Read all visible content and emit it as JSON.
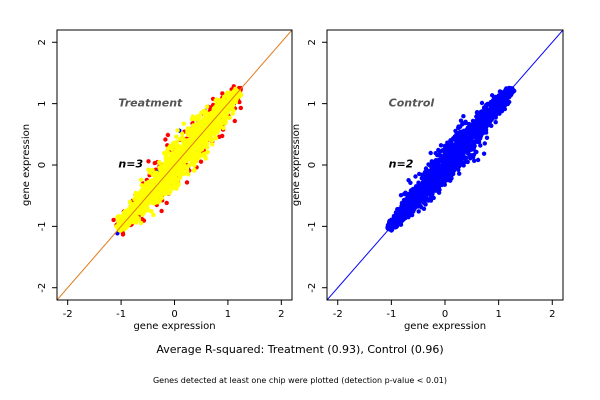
{
  "chart_data": [
    {
      "type": "scatter",
      "panel": "Treatment",
      "annotation": "Treatment",
      "annotation_n": "n=3",
      "xlabel": "gene expression",
      "ylabel": "gene expression",
      "xlim": [
        -2.2,
        2.2
      ],
      "ylim": [
        -2.2,
        2.2
      ],
      "xticks": [
        -2,
        -1,
        0,
        1,
        2
      ],
      "yticks": [
        -2,
        -1,
        0,
        1,
        2
      ],
      "grid": false,
      "reference_line": {
        "slope": 1,
        "intercept": 0,
        "color": "#e0791a"
      },
      "series": [
        {
          "color": "#ff0000",
          "center": [
            0,
            0
          ],
          "extent": [
            -1.05,
            1.25
          ],
          "spread": 0.17,
          "count": 300
        },
        {
          "color": "#0000ff",
          "center": [
            0,
            0
          ],
          "extent": [
            -1.1,
            1.2
          ],
          "spread": 0.12,
          "count": 60
        },
        {
          "color": "#ffff00",
          "center": [
            0,
            0
          ],
          "extent": [
            -1.05,
            1.2
          ],
          "spread": 0.13,
          "count": 1600
        }
      ]
    },
    {
      "type": "scatter",
      "panel": "Control",
      "annotation": "Control",
      "annotation_n": "n=2",
      "xlabel": "gene expression",
      "ylabel": "gene expression",
      "xlim": [
        -2.2,
        2.2
      ],
      "ylim": [
        -2.2,
        2.2
      ],
      "xticks": [
        -2,
        -1,
        0,
        1,
        2
      ],
      "yticks": [
        -2,
        -1,
        0,
        1,
        2
      ],
      "grid": false,
      "reference_line": {
        "slope": 1,
        "intercept": 0,
        "color": "#0000ff"
      },
      "series": [
        {
          "color": "#0000ff",
          "center": [
            0,
            0
          ],
          "extent": [
            -1.05,
            1.25
          ],
          "spread": 0.11,
          "count": 1800
        }
      ]
    }
  ],
  "captions": {
    "main": "Average R-squared: Treatment (0.93), Control (0.96)",
    "sub": "Genes detected at least one chip were plotted (detection p-value < 0.01)"
  },
  "colors": {
    "frame": "#000000",
    "annotation_text": "#555555",
    "annotation_n": "#000000"
  }
}
